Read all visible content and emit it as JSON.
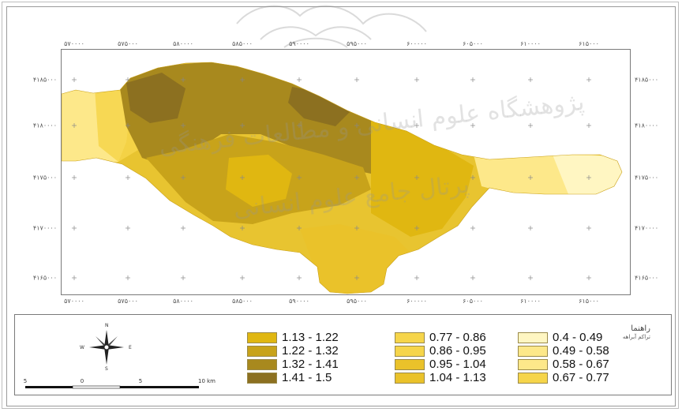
{
  "colors": {
    "page_bg": "#ffffff",
    "class_fills": [
      "#fff6c2",
      "#fde88a",
      "#f6d54a",
      "#eac22a",
      "#e0b711",
      "#c8a31a",
      "#a8891e",
      "#8c7020"
    ]
  },
  "map": {
    "top_ticks": [
      "۵۷۰۰۰۰",
      "۵۷۵۰۰۰",
      "۵۸۰۰۰۰",
      "۵۸۵۰۰۰",
      "۵۹۰۰۰۰",
      "۵۹۵۰۰۰",
      "۶۰۰۰۰۰",
      "۶۰۵۰۰۰",
      "۶۱۰۰۰۰",
      "۶۱۵۰۰۰"
    ],
    "bottom_ticks": [
      "۵۷۰۰۰۰",
      "۵۷۵۰۰۰",
      "۵۸۰۰۰۰",
      "۵۸۵۰۰۰",
      "۵۹۰۰۰۰",
      "۵۹۵۰۰۰",
      "۶۰۰۰۰۰",
      "۶۰۵۰۰۰",
      "۶۱۰۰۰۰",
      "۶۱۵۰۰۰"
    ],
    "left_ticks": [
      "۴۱۸۵۰۰۰",
      "۴۱۸۰۰۰۰",
      "۴۱۷۵۰۰۰",
      "۴۱۷۰۰۰۰",
      "۴۱۶۵۰۰۰"
    ],
    "right_ticks": [
      "۴۱۸۵۰۰۰",
      "۴۱۸۰۰۰۰",
      "۴۱۷۵۰۰۰",
      "۴۱۷۰۰۰۰",
      "۴۱۶۵۰۰۰"
    ]
  },
  "watermark": {
    "line1": "پژوهشگاه علوم انسانی و مطالعات فرهنگی",
    "line2": "پرتال جامع علوم انسانی"
  },
  "legend": {
    "title": "راهنما",
    "subtitle": "تراکم آبراهه",
    "items": [
      {
        "label": "1.13 - 1.22",
        "color": "#e0b711"
      },
      {
        "label": "1.22 - 1.32",
        "color": "#c8a31a"
      },
      {
        "label": "1.32 - 1.41",
        "color": "#a8891e"
      },
      {
        "label": "1.41 - 1.5",
        "color": "#8c7020"
      },
      {
        "label": "0.77 - 0.86",
        "color": "#f6d54a"
      },
      {
        "label": "0.86 - 0.95",
        "color": "#f6d54a"
      },
      {
        "label": "0.95 - 1.04",
        "color": "#eac22a"
      },
      {
        "label": "1.04 - 1.13",
        "color": "#eac22a"
      },
      {
        "label": "0.4 - 0.49",
        "color": "#fff6c2"
      },
      {
        "label": "0.49 - 0.58",
        "color": "#fde88a"
      },
      {
        "label": "0.58 - 0.67",
        "color": "#fde88a"
      },
      {
        "label": "0.67 - 0.77",
        "color": "#f6d54a"
      }
    ],
    "compass": {
      "n": "N",
      "s": "S",
      "e": "E",
      "w": "W"
    },
    "scale_labels": [
      "5",
      "0",
      "5",
      "10 km"
    ]
  }
}
